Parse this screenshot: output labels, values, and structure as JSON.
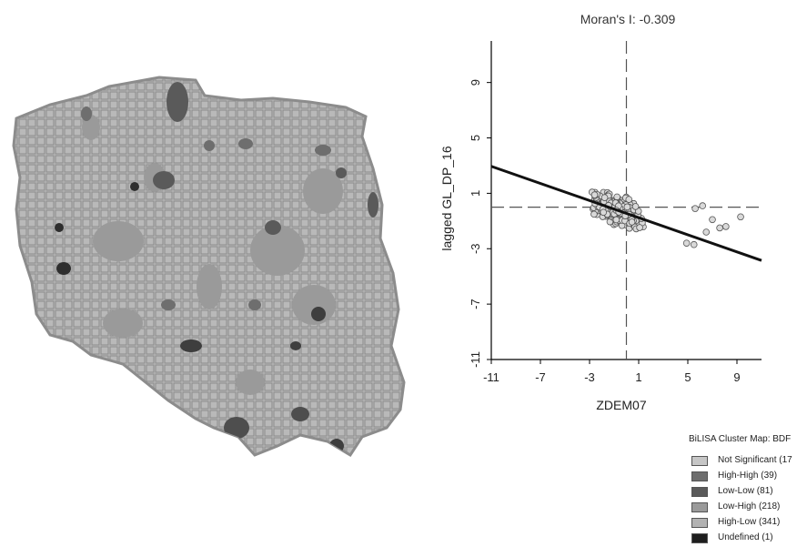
{
  "chart_data": {
    "type": "scatter",
    "title": "Moran's I: -0.309",
    "xlabel": "ZDEM07",
    "ylabel": "lagged GL_DP_16",
    "xlim": [
      -11,
      11
    ],
    "ylim": [
      -11,
      12
    ],
    "x_ticks": [
      "-11",
      "-7",
      "-3",
      "1",
      "5",
      "9"
    ],
    "y_ticks": [
      "-11",
      "-7",
      "-3",
      "1",
      "5",
      "9"
    ],
    "regression_line": {
      "slope": -0.309,
      "intercept": -0.45
    },
    "reference_lines": {
      "x": 0,
      "y": 0
    },
    "grid": false,
    "point_color": "#d9d9d9",
    "outlier_points": [
      {
        "x": 5.6,
        "y": -0.1
      },
      {
        "x": 6.2,
        "y": 0.1
      },
      {
        "x": 7.0,
        "y": -0.9
      },
      {
        "x": 7.6,
        "y": -1.5
      },
      {
        "x": 8.1,
        "y": -1.4
      },
      {
        "x": 9.3,
        "y": -0.7
      },
      {
        "x": 5.5,
        "y": -2.7
      },
      {
        "x": 4.9,
        "y": -2.6
      },
      {
        "x": 6.5,
        "y": -1.8
      }
    ]
  },
  "map": {
    "fill_color": "#b9b9b9",
    "outline_color": "#8c8c8c"
  },
  "legend": {
    "title": "BiLISA Cluster Map: BDF",
    "items": [
      {
        "label": "Not Significant (17",
        "color": "#c6c6c6"
      },
      {
        "label": "High-High (39)",
        "color": "#6e6e6e"
      },
      {
        "label": "Low-Low (81)",
        "color": "#5a5a5a"
      },
      {
        "label": "Low-High (218)",
        "color": "#9a9a9a"
      },
      {
        "label": "High-Low (341)",
        "color": "#b2b2b2"
      },
      {
        "label": "Undefined (1)",
        "color": "#1e1e1e"
      }
    ]
  }
}
